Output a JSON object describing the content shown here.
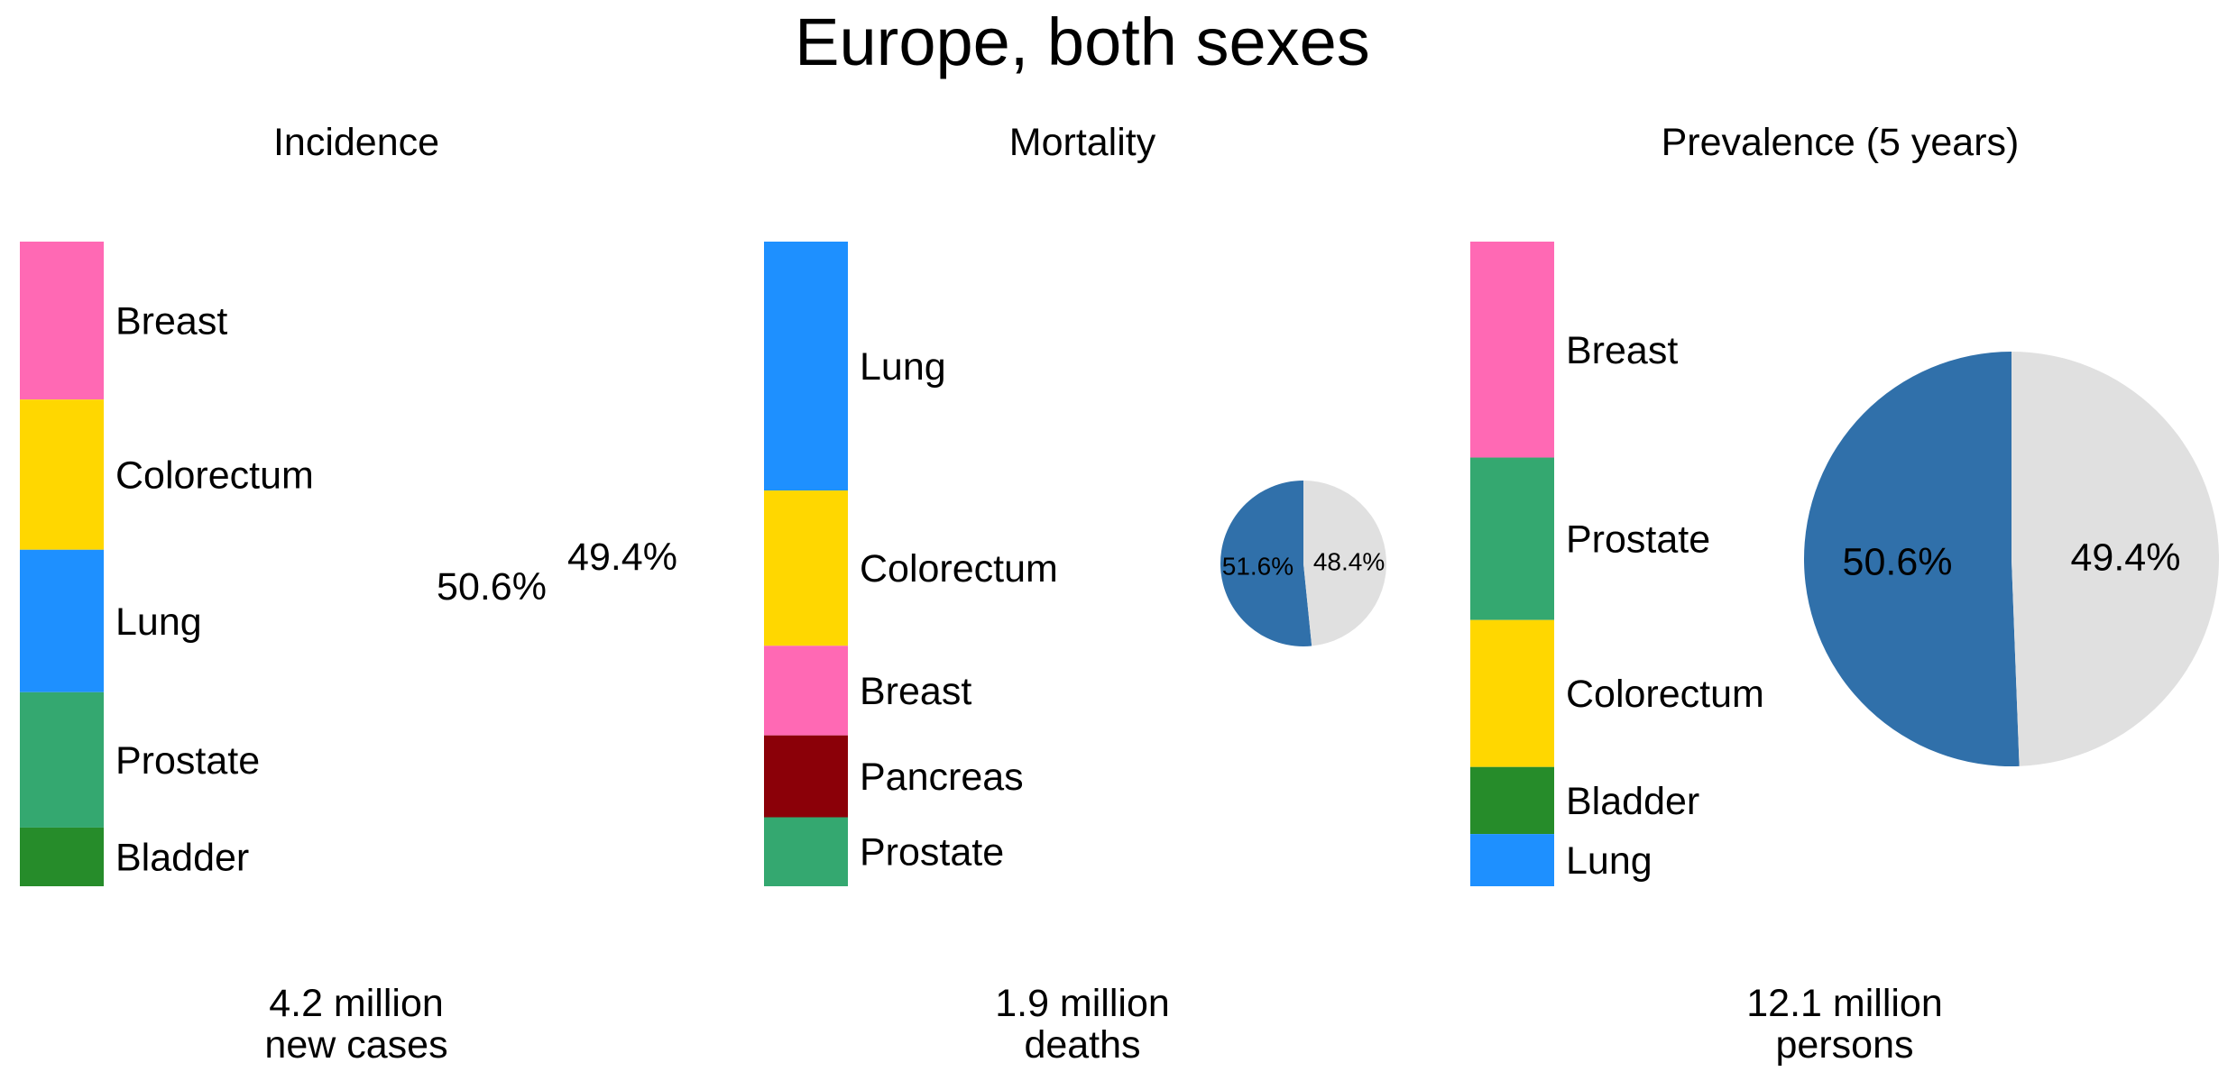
{
  "title": "Europe, both sexes",
  "chart_data": [
    {
      "type": "bar",
      "subtitle": "Incidence",
      "orientation": "stacked-vertical",
      "categories": [
        "Breast",
        "Colorectum",
        "Lung",
        "Prostate",
        "Bladder"
      ],
      "values": [
        24.5,
        23.3,
        22.1,
        21.0,
        9.1
      ],
      "colors": [
        "#ff69b4",
        "#ffd700",
        "#1e90ff",
        "#34a870",
        "#268c2a"
      ],
      "total_label": [
        "4.2 million",
        "new cases"
      ],
      "pie": {
        "type": "pie",
        "slices": [
          {
            "label": "50.6%",
            "value": 50.6,
            "color": "#3070aa"
          },
          {
            "label": "49.4%",
            "value": 49.4,
            "color": "#e0e0e0"
          }
        ],
        "radius_fraction": 0.0
      }
    },
    {
      "type": "bar",
      "subtitle": "Mortality",
      "orientation": "stacked-vertical",
      "categories": [
        "Lung",
        "Colorectum",
        "Breast",
        "Pancreas",
        "Prostate"
      ],
      "values": [
        38.6,
        24.1,
        13.9,
        12.7,
        10.7
      ],
      "colors": [
        "#1e90ff",
        "#ffd700",
        "#ff69b4",
        "#8b0008",
        "#34a870"
      ],
      "total_label": [
        "1.9 million",
        "deaths"
      ],
      "pie": {
        "type": "pie",
        "slices": [
          {
            "label": "51.6%",
            "value": 51.6,
            "color": "#3070aa"
          },
          {
            "label": "48.4%",
            "value": 48.4,
            "color": "#e0e0e0"
          }
        ],
        "radius_fraction": 0.4
      }
    },
    {
      "type": "bar",
      "subtitle": "Prevalence (5 years)",
      "orientation": "stacked-vertical",
      "categories": [
        "Breast",
        "Prostate",
        "Colorectum",
        "Bladder",
        "Lung"
      ],
      "values": [
        33.5,
        25.2,
        22.8,
        10.4,
        8.1
      ],
      "colors": [
        "#ff69b4",
        "#34a870",
        "#ffd700",
        "#268c2a",
        "#1e90ff"
      ],
      "total_label": [
        "12.1 million",
        "persons"
      ],
      "pie": {
        "type": "pie",
        "slices": [
          {
            "label": "50.6%",
            "value": 50.6,
            "color": "#3070aa"
          },
          {
            "label": "49.4%",
            "value": 49.4,
            "color": "#e0e0e0"
          }
        ],
        "radius_fraction": 1.0
      }
    }
  ]
}
